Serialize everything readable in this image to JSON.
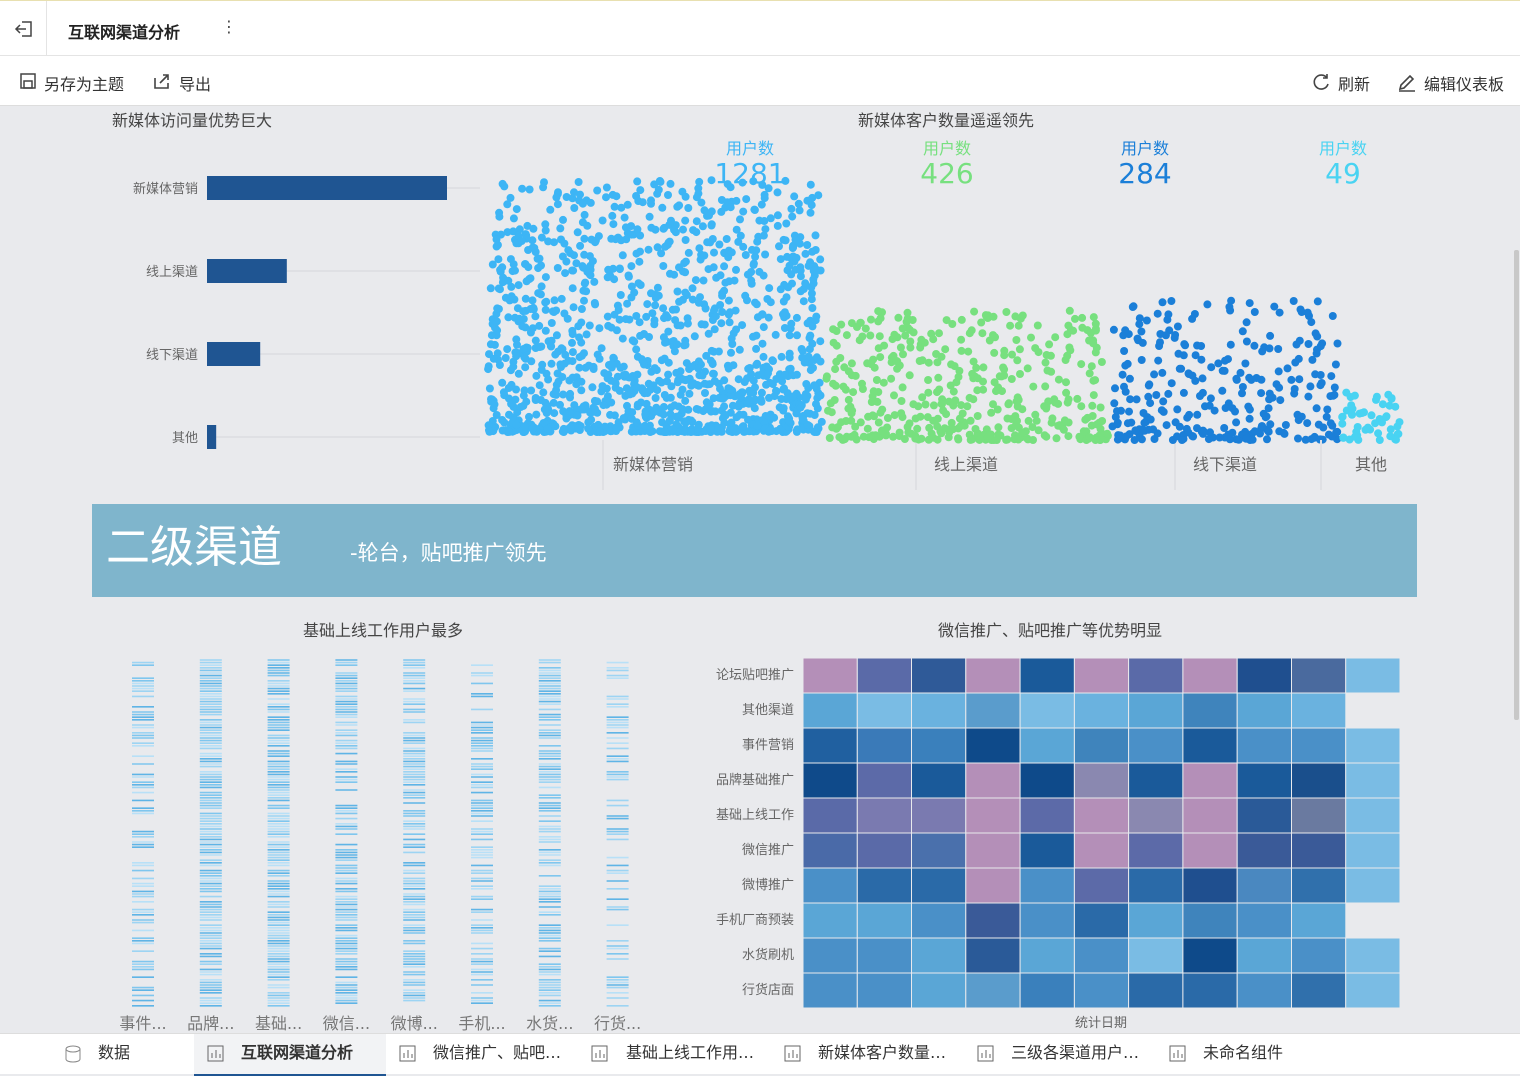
{
  "header": {
    "title": "互联网渠道分析"
  },
  "toolbar": {
    "save_as_theme": "另存为主题",
    "export": "导出",
    "refresh": "刷新",
    "edit_dashboard": "编辑仪表板"
  },
  "banner": {
    "title": "二级渠道",
    "subtitle": "-轮台，贴吧推广领先"
  },
  "chart_data": [
    {
      "type": "bar",
      "title": "新媒体访问量优势巨大",
      "categories": [
        "新媒体营销",
        "线上渠道",
        "线下渠道",
        "其他"
      ],
      "values": [
        1281,
        426,
        284,
        49
      ],
      "color": "#1f5592"
    },
    {
      "type": "swarm",
      "title": "新媒体客户数量遥遥领先",
      "count_label": "用户数",
      "categories": [
        "新媒体营销",
        "线上渠道",
        "线下渠道",
        "其他"
      ],
      "values": [
        1281,
        426,
        284,
        49
      ],
      "colors": [
        "#3db5f5",
        "#77e07f",
        "#1b7fd8",
        "#49d3f2"
      ]
    },
    {
      "type": "strip",
      "title": "基础上线工作用户最多",
      "categories": [
        "事件...",
        "品牌...",
        "基础...",
        "微信...",
        "微博...",
        "手机...",
        "水货...",
        "行货..."
      ],
      "color": "#7fc6ee"
    },
    {
      "type": "heatmap",
      "title": "微信推广、贴吧推广等优势明显",
      "x_label": "统计日期",
      "categories": [
        "论坛贴吧推广",
        "其他渠道",
        "事件营销",
        "品牌基础推广",
        "基础上线工作",
        "微信推广",
        "微博推广",
        "手机厂商预装",
        "水货刷机",
        "行货店面"
      ],
      "colors": [
        [
          "#b48fb8",
          "#5a6aa8",
          "#2f5a98",
          "#b48fb8",
          "#1a5a9a",
          "#b48fb8",
          "#5a6aa8",
          "#b48fb8",
          "#1f4f8f",
          "#4a6a9e",
          "#7abce4"
        ],
        [
          "#5aa6d6",
          "#7abce4",
          "#6ab2df",
          "#5a9ccc",
          "#7abce4",
          "#6ab2df",
          "#5aa6d6",
          "#3f84bc",
          "#5aa6d6",
          "#6ab2df",
          null
        ],
        [
          "#2060a0",
          "#3a7ab8",
          "#3a80bc",
          "#0e4a8a",
          "#5aa6d6",
          "#3f84bc",
          "#4a90c8",
          "#1a5a9a",
          "#4a90c8",
          "#4a90c8",
          "#7abce4"
        ],
        [
          "#0f4a8a",
          "#5c6aa8",
          "#1a5a9a",
          "#b48fb8",
          "#0e4a8a",
          "#8a88b0",
          "#1a5a9a",
          "#b48fb8",
          "#1a5a9a",
          "#1a4f8c",
          "#7abce4"
        ],
        [
          "#5a6aa8",
          "#7a7ab0",
          "#7a7ab0",
          "#b48fb8",
          "#5c6aa8",
          "#b48fb8",
          "#8a88b0",
          "#b48fb8",
          "#2a5a98",
          "#6a7aa0",
          "#7abce4"
        ],
        [
          "#4a6aa8",
          "#5a6aa8",
          "#4a70ac",
          "#b48fb8",
          "#1a5a9a",
          "#b48fb8",
          "#5c6aa8",
          "#b48fb8",
          "#3a5a98",
          "#3a5a98",
          "#7abce4"
        ],
        [
          "#4a90c8",
          "#2a6aa8",
          "#2a6aa8",
          "#b48fb8",
          "#4a90c8",
          "#5c6aa8",
          "#2a6aa8",
          "#1f4f8f",
          "#4a88c0",
          "#3070ac",
          "#7abce4"
        ],
        [
          "#5aa6d6",
          "#5aa6d6",
          "#4a90c8",
          "#3a5a98",
          "#4a90c8",
          "#2a6aa8",
          "#5aa6d6",
          "#3f84bc",
          "#4a90c8",
          "#5aa6d6",
          null
        ],
        [
          "#4a90c8",
          "#4a90c8",
          "#5aa6d6",
          "#2a5a98",
          "#5aa6d6",
          "#4a90c8",
          "#7abce4",
          "#0e4a8a",
          "#5aa6d6",
          "#4a90c8",
          "#7abce4"
        ],
        [
          "#4a90c8",
          "#4a90c8",
          "#5aa6d6",
          "#5a9ccc",
          "#3a80bc",
          "#4a90c8",
          "#2a6aa8",
          "#2a6aa8",
          "#4a90c8",
          "#3070ac",
          "#7abce4"
        ]
      ]
    }
  ],
  "tabs": [
    "数据",
    "互联网渠道分析",
    "微信推广、贴吧…",
    "基础上线工作用…",
    "新媒体客户数量…",
    "三级各渠道用户…",
    "未命名组件"
  ]
}
